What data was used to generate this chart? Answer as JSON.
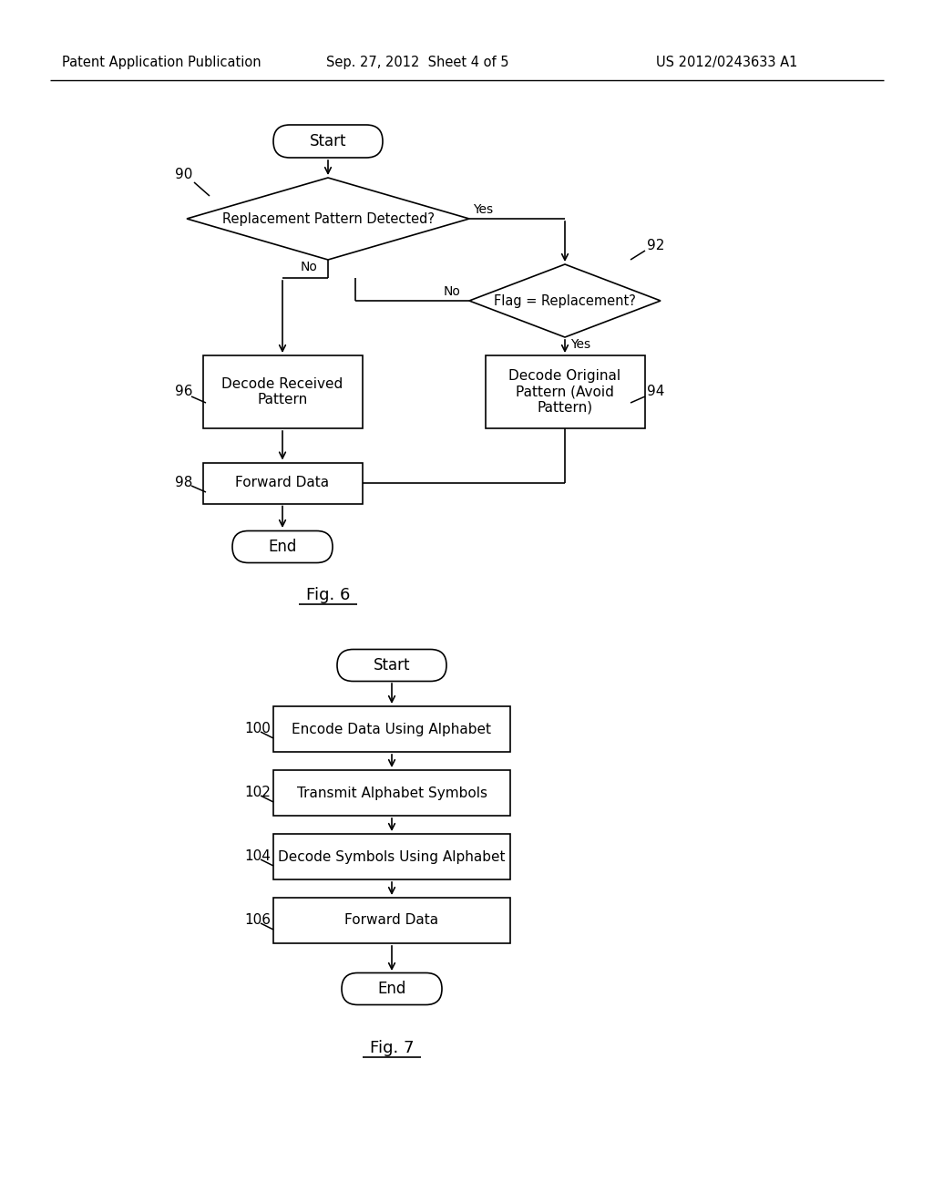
{
  "background_color": "#ffffff",
  "header_left": "Patent Application Publication",
  "header_center": "Sep. 27, 2012  Sheet 4 of 5",
  "header_right": "US 2012/0243633 A1",
  "fig6_title": "Fig. 6",
  "fig7_title": "Fig. 7",
  "line_color": "#000000",
  "text_color": "#000000",
  "box_fill": "#ffffff",
  "box_edge": "#000000"
}
